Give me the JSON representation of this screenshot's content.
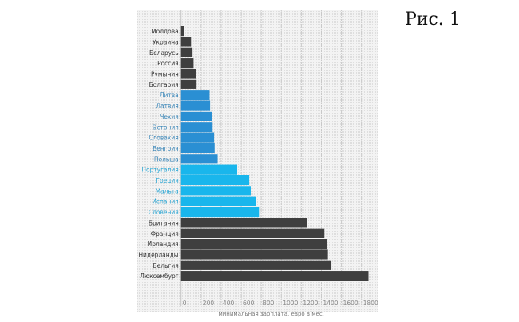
{
  "figure_caption": "Рис. 1",
  "chart_data": {
    "type": "bar",
    "orientation": "horizontal",
    "title": "",
    "xlabel": "минимальная зарплата, евро в мес.",
    "ylabel": "",
    "xlim": [
      0,
      1800
    ],
    "xticks": [
      0,
      200,
      400,
      600,
      800,
      1000,
      1200,
      1400,
      1600,
      1800
    ],
    "grid": true,
    "categories": [
      "Молдова",
      "Украина",
      "Беларусь",
      "Россия",
      "Румыния",
      "Болгария",
      "Литва",
      "Латвия",
      "Чехия",
      "Эстония",
      "Словакия",
      "Венгрия",
      "Польша",
      "Португалия",
      "Греция",
      "Мальта",
      "Испания",
      "Словения",
      "Британия",
      "Франция",
      "Ирландия",
      "Нидерланды",
      "Бельгия",
      "Люксембург"
    ],
    "values": [
      30,
      100,
      115,
      125,
      150,
      155,
      285,
      290,
      305,
      315,
      330,
      335,
      365,
      560,
      680,
      695,
      750,
      785,
      1260,
      1430,
      1460,
      1465,
      1500,
      1870
    ],
    "groups": [
      "dark",
      "dark",
      "dark",
      "dark",
      "dark",
      "dark",
      "blue",
      "blue",
      "blue",
      "blue",
      "blue",
      "blue",
      "blue",
      "cyan",
      "cyan",
      "cyan",
      "cyan",
      "cyan",
      "dark",
      "dark",
      "dark",
      "dark",
      "dark",
      "dark"
    ],
    "colors": {
      "dark": {
        "bar": "#3f3f3f",
        "label": "#333333"
      },
      "blue": {
        "bar": "#2a8fd3",
        "label": "#3a86b8"
      },
      "cyan": {
        "bar": "#19b6ec",
        "label": "#2aa6d4"
      }
    },
    "background": "#ececec",
    "gridline_color": "#c8c8c8"
  }
}
